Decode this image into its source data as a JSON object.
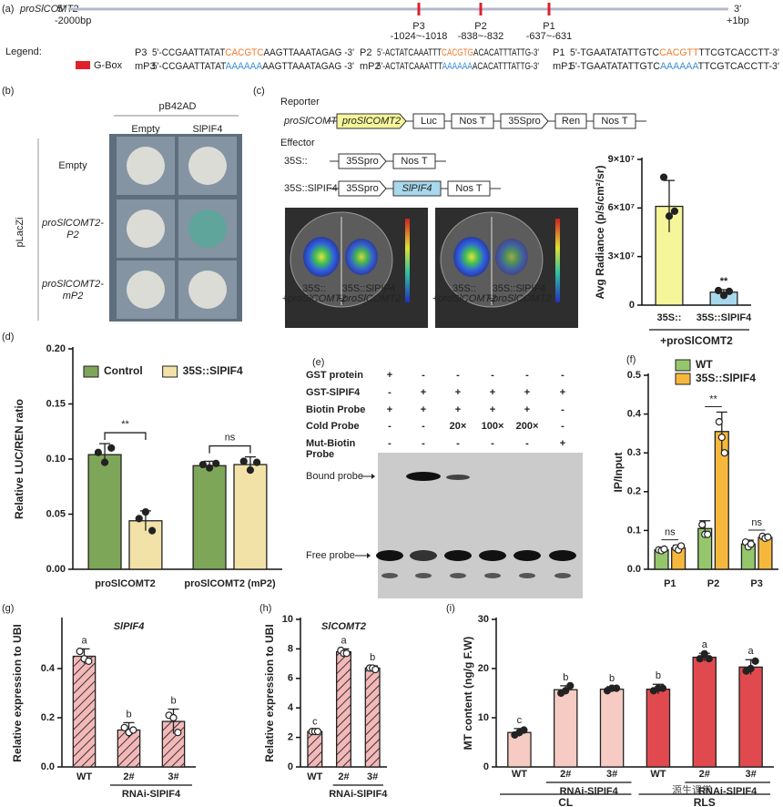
{
  "promoter": {
    "panel": "(a)",
    "name": "proSlCOMT2",
    "five_prime": "5'",
    "three_prime": "3'",
    "start": "-2000bp",
    "end": "+1bp",
    "sites": [
      {
        "name": "P3",
        "range": "-1024~-1018"
      },
      {
        "name": "P2",
        "range": "-838~-832"
      },
      {
        "name": "P1",
        "range": "-637~-631"
      }
    ]
  },
  "legend": {
    "title": "Legend:",
    "gbox": "G-Box",
    "sequences": [
      {
        "name": "P3",
        "parts": [
          "5'-CCGAATTATAT",
          "CACGTC",
          "AAGTTAAATAGAG -3'"
        ]
      },
      {
        "name": "mP3",
        "parts": [
          "5'-CCGAATTATAT",
          "AAAAAA",
          "AAGTTAAATAGAG -3'"
        ]
      },
      {
        "name": "P2",
        "parts": [
          "5'-ACTATCAAATTT",
          "CACGTG",
          "ACACATTTATTG-3'"
        ]
      },
      {
        "name": "mP2",
        "parts": [
          "5'-ACTATCAAATTT",
          "AAAAAA",
          "ACACATTTATTG-3'"
        ]
      },
      {
        "name": "P1",
        "parts": [
          "5'-TGAATATATTGTC",
          "CACGTT",
          "TTCGTCACCTT-3'"
        ]
      },
      {
        "name": "mP1",
        "parts": [
          "5'-TGAATATATTGTC",
          "AAAAAA",
          "TTCGTCACCTT-3'"
        ]
      }
    ]
  },
  "yeast": {
    "panel": "(b)",
    "vector_top": "pB42AD",
    "columns": [
      "Empty",
      "SlPIF4"
    ],
    "vector_side": "pLacZi",
    "rows": [
      [
        "Empty"
      ],
      [
        "proSlCOMT2-",
        "P2"
      ],
      [
        "proSlCOMT2-",
        "mP2"
      ]
    ]
  },
  "constructs": {
    "panel": "(c)",
    "reporter": "Reporter",
    "reporter_name": "proSlCOMT2",
    "reporter_parts": [
      "proSlCOMT2",
      "Luc",
      "Nos T",
      "35Spro",
      "Ren",
      "Nos T"
    ],
    "effector": "Effector",
    "effectors": [
      {
        "name": "35S::",
        "parts": [
          "35Spro",
          "Nos T"
        ]
      },
      {
        "name": "35S::SlPIF4",
        "parts": [
          "35Spro",
          "SlPIF4",
          "Nos T"
        ]
      }
    ],
    "image_labels": [
      [
        "35S::",
        "+proSlCOMT2"
      ],
      [
        "35S::SlPIF4",
        "+proSlCOMT2"
      ]
    ]
  },
  "emsa": {
    "panel": "(e)",
    "rows": [
      {
        "label": [
          "GST protein"
        ],
        "cells": [
          "+",
          "-",
          "-",
          "-",
          "-",
          "-"
        ]
      },
      {
        "label": [
          "GST-SlPIF4"
        ],
        "cells": [
          "-",
          "+",
          "+",
          "+",
          "+",
          "+"
        ]
      },
      {
        "label": [
          "Biotin Probe"
        ],
        "cells": [
          "+",
          "+",
          "+",
          "+",
          "+",
          "-"
        ]
      },
      {
        "label": [
          "Cold Probe"
        ],
        "cells": [
          "-",
          "-",
          "20×",
          "100×",
          "200×",
          "-"
        ]
      },
      {
        "label": [
          "Mut-Biotin",
          "Probe"
        ],
        "cells": [
          "-",
          "-",
          "-",
          "-",
          "-",
          "+"
        ]
      }
    ],
    "bound": "Bound probe",
    "free": "Free probe"
  },
  "watermark": "源生课堂",
  "chart_data": [
    {
      "type": "bar",
      "ylabel": "Avg Radiance (p/s/cm²/sr)",
      "xlabel": "+proSlCOMT2",
      "categories": [
        "35S::",
        "35S::SlPIF4"
      ],
      "ylim": [
        0,
        90000000
      ],
      "yticks": [
        0,
        {
          "value": 30000000,
          "label": "3×10⁷"
        },
        {
          "value": 60000000,
          "label": "6×10⁷"
        },
        {
          "value": 90000000,
          "label": "9×10⁷"
        }
      ],
      "markers": "filled",
      "annotations": [
        "**"
      ],
      "series": [
        {
          "colors": [
            "#f5f59a",
            "#a8d8ee"
          ],
          "values": [
            61000000,
            8000000
          ],
          "errors": [
            16000000,
            1500000
          ],
          "points": [
            [
              79000000,
              55000000,
              58000000
            ],
            [
              9000000,
              6000000,
              8500000
            ]
          ]
        }
      ]
    },
    {
      "type": "bar",
      "panel": "(d)",
      "ylabel": "Relative LUC/REN ratio",
      "categories": [
        "proSlCOMT2",
        "proSlCOMT2 (mP2)"
      ],
      "ylim": [
        0,
        0.2
      ],
      "yticks": [
        {
          "value": 0,
          "label": "0.00"
        },
        {
          "value": 0.05,
          "label": "0.05"
        },
        {
          "value": 0.1,
          "label": "0.10"
        },
        {
          "value": 0.15,
          "label": "0.15"
        },
        {
          "value": 0.2,
          "label": "0.20"
        }
      ],
      "markers": "filled",
      "annotations": [
        "**",
        "ns"
      ],
      "series": [
        {
          "name": "Control",
          "color": "#7ea659",
          "values": [
            0.104,
            0.094
          ],
          "errors": [
            0.01,
            0.004
          ],
          "points": [
            [
              0.106,
              0.097,
              0.11
            ],
            [
              0.095,
              0.092,
              0.096
            ]
          ]
        },
        {
          "name": "35S::SlPIF4",
          "color": "#f2e2a8",
          "values": [
            0.044,
            0.095
          ],
          "errors": [
            0.009,
            0.007
          ],
          "points": [
            [
              0.046,
              0.052,
              0.035
            ],
            [
              0.098,
              0.09,
              0.097
            ]
          ]
        }
      ]
    },
    {
      "type": "bar",
      "panel": "(f)",
      "ylabel": "IP/Input",
      "categories": [
        "P1",
        "P2",
        "P3"
      ],
      "ylim": [
        0,
        0.5
      ],
      "yticks": [
        {
          "value": 0,
          "label": "0.0"
        },
        0.1,
        0.2,
        0.3,
        0.4,
        0.5
      ],
      "markers": "open",
      "annotations": [
        "ns",
        "**",
        "ns"
      ],
      "series": [
        {
          "name": "WT",
          "color": "#95c66c",
          "values": [
            0.05,
            0.105,
            0.065
          ],
          "errors": [
            0.005,
            0.02,
            0.01
          ],
          "points": [
            [
              0.05,
              0.048,
              0.052
            ],
            [
              0.115,
              0.09,
              0.09
            ],
            [
              0.07,
              0.058,
              0.065
            ]
          ]
        },
        {
          "name": "35S::SlPIF4",
          "color": "#f6b83c",
          "values": [
            0.055,
            0.355,
            0.082
          ],
          "errors": [
            0.007,
            0.05,
            0.005
          ],
          "points": [
            [
              0.055,
              0.05,
              0.06
            ],
            [
              0.38,
              0.34,
              0.3
            ],
            [
              0.085,
              0.08,
              0.083
            ]
          ]
        }
      ]
    },
    {
      "type": "bar",
      "panel": "(g)",
      "title": "SlPIF4",
      "ylabel": "Relative expression to UBI",
      "categories": [
        "WT",
        "2#",
        "3#"
      ],
      "group_labels": [
        "RNAi-SlPIF4"
      ],
      "ylim": [
        0,
        0.6
      ],
      "yticks": [
        {
          "value": 0,
          "label": "0.0"
        },
        0.2,
        0.4
      ],
      "markers": "open",
      "series": [
        {
          "color": "#f4b8b8",
          "pattern": "hatch",
          "values": [
            0.45,
            0.15,
            0.185
          ],
          "errors": [
            0.03,
            0.03,
            0.05
          ],
          "letters": [
            "a",
            "b",
            "b"
          ],
          "points": [
            [
              0.47,
              0.44,
              0.43
            ],
            [
              0.16,
              0.14,
              0.15
            ],
            [
              0.21,
              0.2,
              0.14
            ]
          ]
        }
      ]
    },
    {
      "type": "bar",
      "panel": "(h)",
      "title": "SlCOMT2",
      "ylabel": "Relative expression to UBI",
      "categories": [
        "WT",
        "2#",
        "3#"
      ],
      "group_labels": [
        "RNAi-SlPIF4"
      ],
      "ylim": [
        0,
        10
      ],
      "yticks": [
        0,
        2,
        4,
        6,
        8,
        10
      ],
      "markers": "open",
      "series": [
        {
          "color": "#f4b8b8",
          "pattern": "hatch",
          "values": [
            2.4,
            7.8,
            6.7
          ],
          "errors": [
            0.1,
            0.2,
            0.15
          ],
          "letters": [
            "c",
            "a",
            "b"
          ],
          "points": [
            [
              2.4,
              2.4,
              2.4
            ],
            [
              7.9,
              7.7,
              7.7
            ],
            [
              6.7,
              6.7,
              6.6
            ]
          ]
        }
      ]
    },
    {
      "type": "bar",
      "panel": "(i)",
      "ylabel": "MT content (ng/g F.W)",
      "categories": [
        "WT",
        "2#",
        "3#",
        "WT",
        "2#",
        "3#"
      ],
      "group_labels": [
        "RNAi-SlPIF4",
        "RNAi-SlPIF4"
      ],
      "groups": [
        "CL",
        "RLS"
      ],
      "ylim": [
        0,
        30
      ],
      "yticks": [
        0,
        10,
        20,
        30
      ],
      "markers": "filled",
      "series": [
        {
          "colors": [
            "#f5cbc3",
            "#f5cbc3",
            "#f5cbc3",
            "#e04a4f",
            "#e04a4f",
            "#e04a4f"
          ],
          "values": [
            7,
            15.7,
            15.8,
            15.8,
            22.3,
            20.3
          ],
          "errors": [
            0.8,
            0.8,
            0.5,
            1,
            0.8,
            1.5
          ],
          "letters": [
            "c",
            "b",
            "b",
            "b",
            "a",
            "a"
          ],
          "points": [
            [
              6.5,
              7,
              7.5
            ],
            [
              15,
              15.5,
              16.5
            ],
            [
              15.5,
              16,
              16
            ],
            [
              15.5,
              16,
              16
            ],
            [
              22,
              23,
              22
            ],
            [
              19.5,
              20,
              21.5
            ]
          ]
        }
      ]
    }
  ]
}
